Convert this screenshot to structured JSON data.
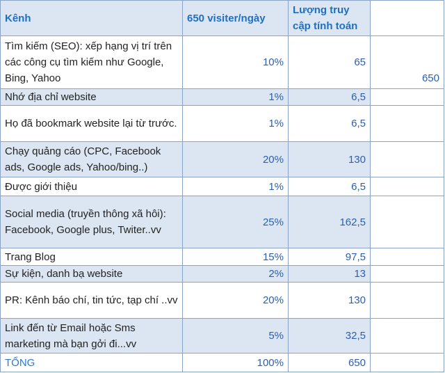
{
  "header": {
    "col1": "Kênh",
    "col2": "650 visiter/ngày",
    "col3": "Lượng truy cập tính toán",
    "col4": ""
  },
  "rows": [
    {
      "channel": "Tìm kiếm (SEO): xếp hạng vị trí trên các công cụ tìm kiếm như Google, Bing, Yahoo",
      "percent": "10%",
      "visits": "65",
      "extra": "650"
    },
    {
      "channel": "Nhớ địa chỉ website",
      "percent": "1%",
      "visits": "6,5",
      "extra": ""
    },
    {
      "channel": "Họ đã bookmark website lại từ trước.",
      "percent": "1%",
      "visits": "6,5",
      "extra": ""
    },
    {
      "channel": "Chạy quảng cáo (CPC, Facebook ads, Google ads, Yahoo/bing..)",
      "percent": "20%",
      "visits": "130",
      "extra": ""
    },
    {
      "channel": "Được giới thiệu",
      "percent": "1%",
      "visits": "6,5",
      "extra": ""
    },
    {
      "channel": "Social media (truyền thông xã hôi): Facebook, Google plus, Twiter..vv",
      "percent": "25%",
      "visits": "162,5",
      "extra": ""
    },
    {
      "channel": "Trang Blog",
      "percent": "15%",
      "visits": "97,5",
      "extra": ""
    },
    {
      "channel": "Sự kiện, danh bạ website",
      "percent": "2%",
      "visits": "13",
      "extra": ""
    },
    {
      "channel": "PR: Kênh báo chí, tin tức, tạp chí ..vv",
      "percent": "20%",
      "visits": "130",
      "extra": ""
    },
    {
      "channel": "Link đến từ Email hoặc Sms marketing mà bạn gởi đi...vv",
      "percent": "5%",
      "visits": "32,5",
      "extra": ""
    }
  ],
  "total": {
    "label": "TỔNG",
    "percent": "100%",
    "visits": "650",
    "extra": ""
  }
}
